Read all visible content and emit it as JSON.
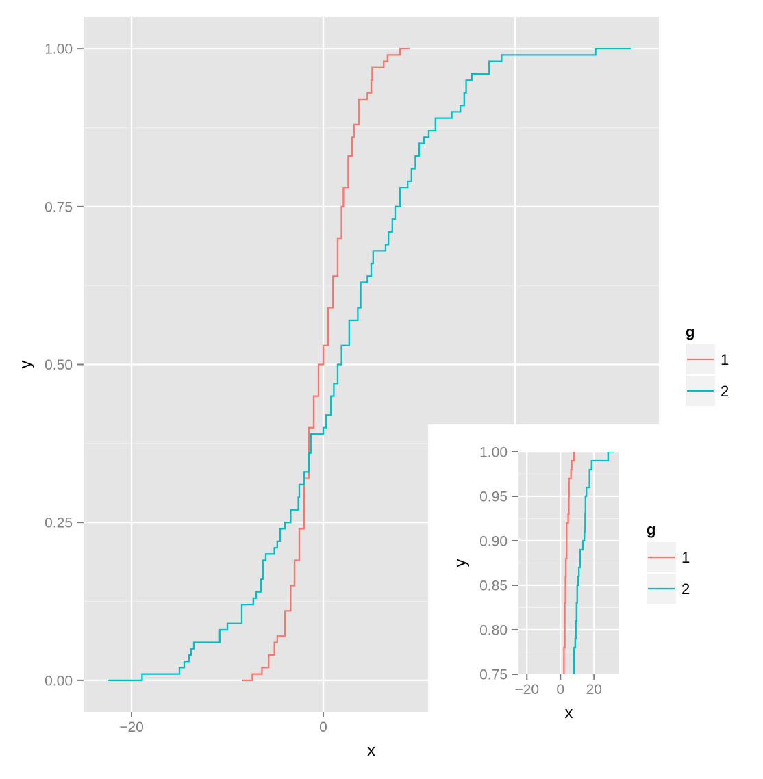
{
  "chart_data": [
    {
      "type": "line",
      "subtype": "ecdf-step",
      "panel": "main",
      "xlabel": "x",
      "ylabel": "y",
      "xlim": [
        -25,
        35
      ],
      "ylim": [
        -0.05,
        1.05
      ],
      "x_ticks": [
        -20,
        0
      ],
      "x_tick_labels": [
        "−20",
        "0"
      ],
      "y_ticks": [
        0,
        0.25,
        0.5,
        0.75,
        1.0
      ],
      "y_tick_labels": [
        "0.00",
        "0.25",
        "0.50",
        "0.75",
        "1.00"
      ],
      "grid": true,
      "legend": {
        "title": "g",
        "position": "right",
        "entries": [
          "1",
          "2"
        ]
      }
    },
    {
      "type": "line",
      "subtype": "ecdf-step",
      "panel": "inset",
      "xlabel": "x",
      "ylabel": "y",
      "xlim": [
        -25,
        35
      ],
      "ylim": [
        0.75,
        1.0
      ],
      "x_ticks": [
        -20,
        0,
        20
      ],
      "x_tick_labels": [
        "−20",
        "0",
        "20"
      ],
      "y_ticks": [
        0.75,
        0.8,
        0.85,
        0.9,
        0.95,
        1.0
      ],
      "y_tick_labels": [
        "0.75",
        "0.80",
        "0.85",
        "0.90",
        "0.95",
        "1.00"
      ],
      "grid": true,
      "legend": {
        "title": "g",
        "position": "right",
        "entries": [
          "1",
          "2"
        ]
      }
    }
  ],
  "series": [
    {
      "name": "1",
      "color": "#F8766D",
      "x_end": 9.0,
      "points": [
        [
          -8.5,
          0
        ],
        [
          -7.4,
          0.01
        ],
        [
          -6.4,
          0.02
        ],
        [
          -5.7,
          0.04
        ],
        [
          -5.1,
          0.06
        ],
        [
          -4.8,
          0.07
        ],
        [
          -4.0,
          0.11
        ],
        [
          -3.4,
          0.15
        ],
        [
          -3.0,
          0.19
        ],
        [
          -2.5,
          0.24
        ],
        [
          -2.0,
          0.32
        ],
        [
          -1.5,
          0.4
        ],
        [
          -1.0,
          0.45
        ],
        [
          -0.5,
          0.5
        ],
        [
          0.0,
          0.53
        ],
        [
          0.5,
          0.59
        ],
        [
          1.0,
          0.64
        ],
        [
          1.5,
          0.7
        ],
        [
          1.9,
          0.75
        ],
        [
          2.1,
          0.78
        ],
        [
          2.6,
          0.83
        ],
        [
          3.0,
          0.86
        ],
        [
          3.2,
          0.88
        ],
        [
          3.7,
          0.92
        ],
        [
          4.6,
          0.93
        ],
        [
          5.0,
          0.95
        ],
        [
          5.1,
          0.97
        ],
        [
          6.3,
          0.98
        ],
        [
          6.7,
          0.99
        ],
        [
          8.0,
          1.0
        ]
      ]
    },
    {
      "name": "2",
      "color": "#00BFC4",
      "x_end": 32.1,
      "points": [
        [
          -22.5,
          0
        ],
        [
          -18.9,
          0.01
        ],
        [
          -15.0,
          0.02
        ],
        [
          -14.5,
          0.03
        ],
        [
          -14.0,
          0.04
        ],
        [
          -13.8,
          0.05
        ],
        [
          -13.5,
          0.06
        ],
        [
          -10.8,
          0.08
        ],
        [
          -10.0,
          0.09
        ],
        [
          -8.5,
          0.12
        ],
        [
          -7.3,
          0.13
        ],
        [
          -7.0,
          0.14
        ],
        [
          -6.5,
          0.16
        ],
        [
          -6.3,
          0.19
        ],
        [
          -6.0,
          0.2
        ],
        [
          -5.1,
          0.21
        ],
        [
          -4.8,
          0.22
        ],
        [
          -4.5,
          0.24
        ],
        [
          -4.0,
          0.25
        ],
        [
          -3.4,
          0.27
        ],
        [
          -2.6,
          0.29
        ],
        [
          -2.5,
          0.31
        ],
        [
          -2.0,
          0.33
        ],
        [
          -1.5,
          0.36
        ],
        [
          -1.3,
          0.39
        ],
        [
          0.0,
          0.4
        ],
        [
          0.3,
          0.42
        ],
        [
          0.8,
          0.45
        ],
        [
          1.1,
          0.47
        ],
        [
          1.5,
          0.5
        ],
        [
          1.9,
          0.53
        ],
        [
          2.7,
          0.57
        ],
        [
          3.6,
          0.59
        ],
        [
          3.9,
          0.63
        ],
        [
          4.6,
          0.64
        ],
        [
          5.0,
          0.66
        ],
        [
          5.2,
          0.68
        ],
        [
          6.5,
          0.69
        ],
        [
          6.8,
          0.71
        ],
        [
          7.2,
          0.73
        ],
        [
          7.5,
          0.75
        ],
        [
          8.0,
          0.78
        ],
        [
          8.8,
          0.79
        ],
        [
          9.2,
          0.81
        ],
        [
          9.6,
          0.83
        ],
        [
          10.0,
          0.85
        ],
        [
          10.5,
          0.86
        ],
        [
          11.0,
          0.87
        ],
        [
          11.7,
          0.89
        ],
        [
          13.4,
          0.9
        ],
        [
          14.3,
          0.91
        ],
        [
          14.7,
          0.93
        ],
        [
          14.9,
          0.95
        ],
        [
          15.5,
          0.96
        ],
        [
          17.3,
          0.98
        ],
        [
          18.6,
          0.99
        ],
        [
          28.4,
          1.0
        ]
      ]
    }
  ]
}
